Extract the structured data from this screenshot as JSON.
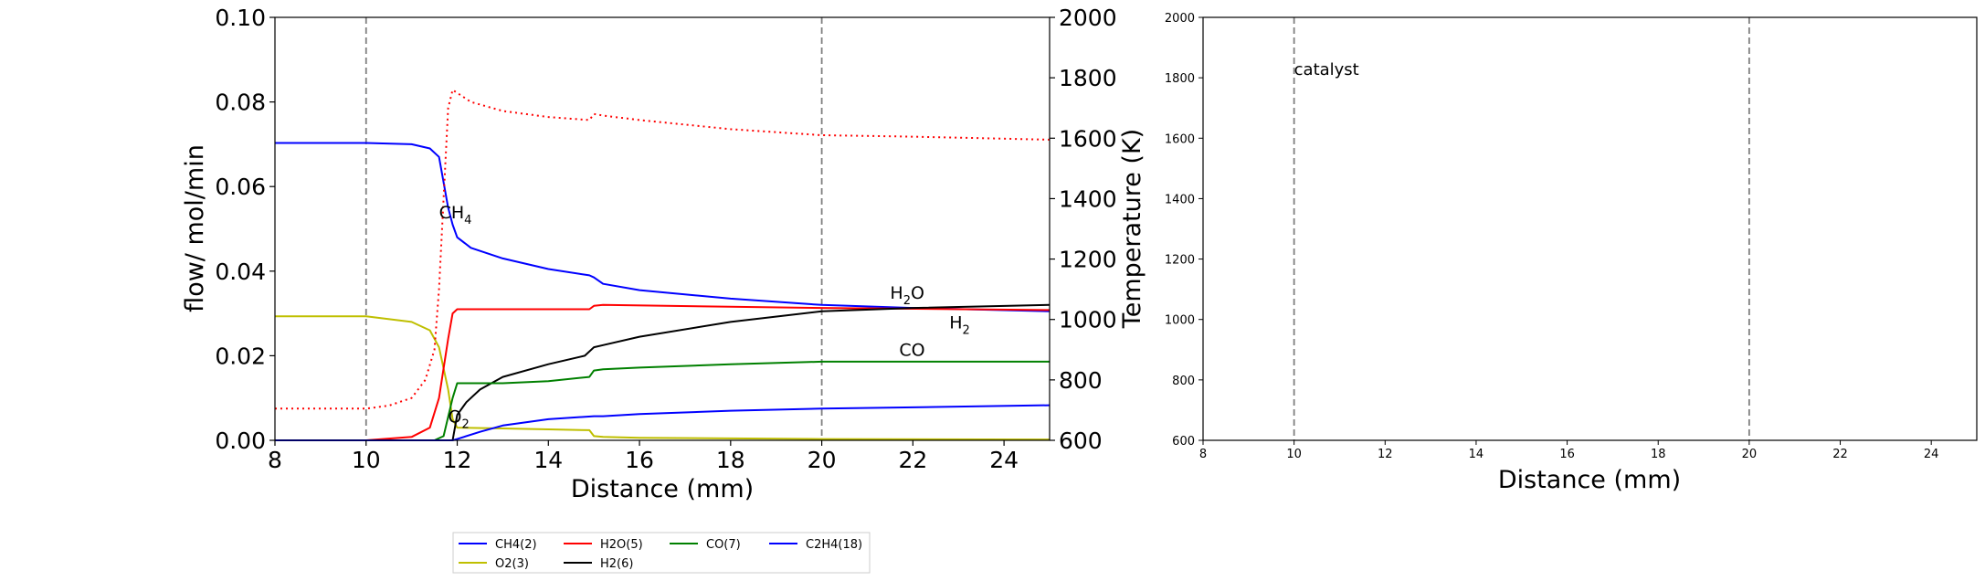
{
  "chart_data": [
    {
      "type": "line",
      "xlabel": "Distance (mm)",
      "ylabel": "flow/ mol/min",
      "ylabel_right": "Temperature (K)",
      "xlim": [
        8,
        25
      ],
      "ylim": [
        0,
        0.1
      ],
      "ylim_right": [
        600,
        2000
      ],
      "x_ticks": [
        "8",
        "10",
        "12",
        "14",
        "16",
        "18",
        "20",
        "22",
        "24"
      ],
      "y_ticks": [
        "0.00",
        "0.02",
        "0.04",
        "0.06",
        "0.08",
        "0.10"
      ],
      "y_ticks_right": [
        "600",
        "800",
        "1000",
        "1200",
        "1400",
        "1600",
        "1800",
        "2000"
      ],
      "vlines": [
        10,
        20
      ],
      "legend_position": "below",
      "series": [
        {
          "name": "CH4(2)",
          "color": "#0000ff",
          "x": [
            8,
            10,
            11,
            11.4,
            11.6,
            11.7,
            11.8,
            11.9,
            12,
            12.3,
            13,
            14,
            14.9,
            15,
            15.2,
            16,
            18,
            20,
            22,
            25
          ],
          "y": [
            0.0703,
            0.0703,
            0.07,
            0.069,
            0.067,
            0.061,
            0.055,
            0.051,
            0.048,
            0.0455,
            0.043,
            0.0405,
            0.039,
            0.0385,
            0.037,
            0.0355,
            0.0335,
            0.032,
            0.0313,
            0.0305
          ]
        },
        {
          "name": "O2(3)",
          "color": "#bfbf00",
          "x": [
            8,
            10,
            11,
            11.4,
            11.6,
            11.8,
            11.9,
            12,
            13,
            14,
            14.9,
            15,
            15.2,
            16,
            20,
            25
          ],
          "y": [
            0.0293,
            0.0293,
            0.028,
            0.026,
            0.022,
            0.012,
            0.005,
            0.003,
            0.0028,
            0.0026,
            0.0024,
            0.001,
            0.0008,
            0.0006,
            0.0003,
            0.0002
          ]
        },
        {
          "name": "H2O(5)",
          "color": "#ff0000",
          "x": [
            8,
            10,
            11,
            11.4,
            11.6,
            11.8,
            11.9,
            12,
            14.9,
            15,
            15.2,
            20,
            25
          ],
          "y": [
            0,
            0,
            0.0008,
            0.003,
            0.01,
            0.024,
            0.03,
            0.031,
            0.031,
            0.0318,
            0.032,
            0.0313,
            0.0308
          ]
        },
        {
          "name": "H2(6)",
          "color": "#000000",
          "x": [
            8,
            11.9,
            12,
            12.2,
            12.5,
            13,
            14,
            14.8,
            15,
            15.2,
            16,
            18,
            20,
            22,
            25
          ],
          "y": [
            0,
            0,
            0.006,
            0.009,
            0.012,
            0.015,
            0.018,
            0.02,
            0.022,
            0.0225,
            0.0245,
            0.028,
            0.0305,
            0.0313,
            0.032
          ]
        },
        {
          "name": "CO(7)",
          "color": "#008000",
          "x": [
            8,
            11.5,
            11.7,
            11.9,
            12,
            13,
            14,
            14.9,
            15,
            15.2,
            16,
            18,
            20,
            25
          ],
          "y": [
            0,
            0,
            0.001,
            0.01,
            0.0135,
            0.0135,
            0.014,
            0.015,
            0.0165,
            0.0168,
            0.0172,
            0.018,
            0.0186,
            0.0186
          ]
        },
        {
          "name": "C2H4(18)",
          "color": "#0000ff",
          "x": [
            8,
            11.9,
            12,
            12.5,
            13,
            14,
            15,
            15.2,
            16,
            18,
            20,
            22,
            25
          ],
          "y": [
            0,
            0,
            0.0003,
            0.002,
            0.0035,
            0.005,
            0.0057,
            0.0057,
            0.0062,
            0.007,
            0.0075,
            0.0078,
            0.0083
          ]
        },
        {
          "name": "Temperature",
          "color": "#ff0000",
          "axis": "right",
          "style": "dotted",
          "x": [
            8,
            10,
            10.5,
            11,
            11.3,
            11.5,
            11.6,
            11.7,
            11.8,
            11.9,
            12,
            12.3,
            13,
            14,
            14.9,
            15,
            15.2,
            16,
            18,
            20,
            22,
            25
          ],
          "y": [
            705,
            705,
            715,
            740,
            800,
            900,
            1100,
            1400,
            1700,
            1760,
            1750,
            1720,
            1690,
            1670,
            1660,
            1680,
            1675,
            1660,
            1630,
            1610,
            1605,
            1595
          ]
        }
      ],
      "annotations": [
        {
          "text": "CH",
          "sub": "4",
          "x": 11.6,
          "y": 0.0525,
          "color": "#0000ff"
        },
        {
          "text": "O",
          "sub": "2",
          "x": 11.8,
          "y": 0.0042,
          "color": "#bfbf00"
        },
        {
          "text": "H",
          "sub": "2",
          "tail": "O",
          "x": 21.5,
          "y": 0.0335,
          "color": "#ff0000"
        },
        {
          "text": "H",
          "sub": "2",
          "x": 22.8,
          "y": 0.0265,
          "color": "#000000"
        },
        {
          "text": "CO",
          "x": 21.7,
          "y": 0.02,
          "color": "#008000"
        }
      ]
    },
    {
      "type": "line",
      "xlabel": "Distance (mm)",
      "xlim": [
        8,
        25
      ],
      "ylim": [
        600,
        2000
      ],
      "x_ticks": [
        "8",
        "10",
        "12",
        "14",
        "16",
        "18",
        "20",
        "22",
        "24"
      ],
      "y_ticks": [
        "600",
        "800",
        "1000",
        "1200",
        "1400",
        "1600",
        "1800",
        "2000"
      ],
      "vlines": [
        10,
        20
      ],
      "annotations": [
        {
          "text": "catalyst",
          "x": 10,
          "y": 1810,
          "color": "#000000"
        }
      ],
      "series": []
    }
  ]
}
